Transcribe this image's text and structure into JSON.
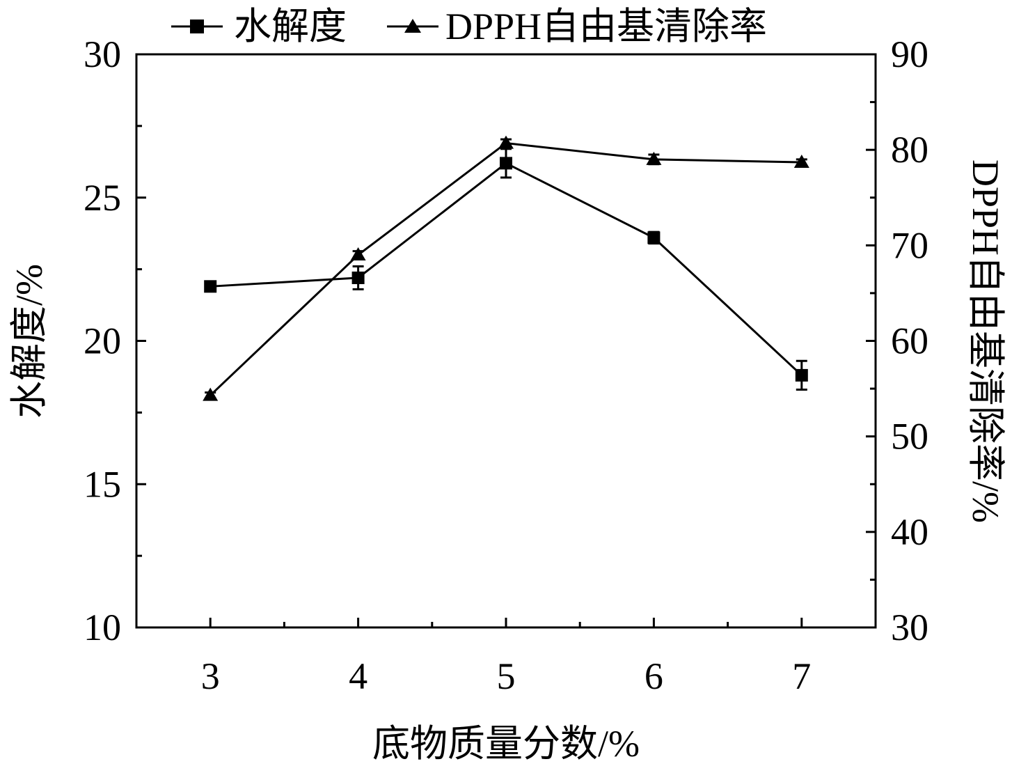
{
  "chart_data": {
    "type": "line",
    "x": [
      3,
      4,
      5,
      6,
      7
    ],
    "xlabel": "底物质量分数/%",
    "ylabel_left": "水解度/%",
    "ylabel_right": "DPPH自由基清除率/%",
    "ylim_left": [
      10,
      30
    ],
    "ylim_right": [
      30,
      90
    ],
    "xlim": [
      2.5,
      7.5
    ],
    "x_ticks": [
      "3",
      "4",
      "5",
      "6",
      "7"
    ],
    "y_left_ticks": [
      "10",
      "15",
      "20",
      "25",
      "30"
    ],
    "y_right_ticks": [
      "30",
      "40",
      "50",
      "60",
      "70",
      "80",
      "90"
    ],
    "grid": false,
    "legend_position": "top",
    "series": [
      {
        "name": "水解度",
        "marker": "square",
        "axis": "left",
        "values": [
          21.9,
          22.2,
          26.2,
          23.6,
          18.8
        ],
        "errors": [
          0.1,
          0.4,
          0.5,
          0.2,
          0.5
        ]
      },
      {
        "name": "DPPH自由基清除率",
        "marker": "triangle",
        "axis": "right",
        "values": [
          54.3,
          69.0,
          80.7,
          79.0,
          78.7
        ],
        "errors": [
          0.3,
          0.4,
          0.4,
          0.5,
          0.3
        ]
      }
    ]
  }
}
